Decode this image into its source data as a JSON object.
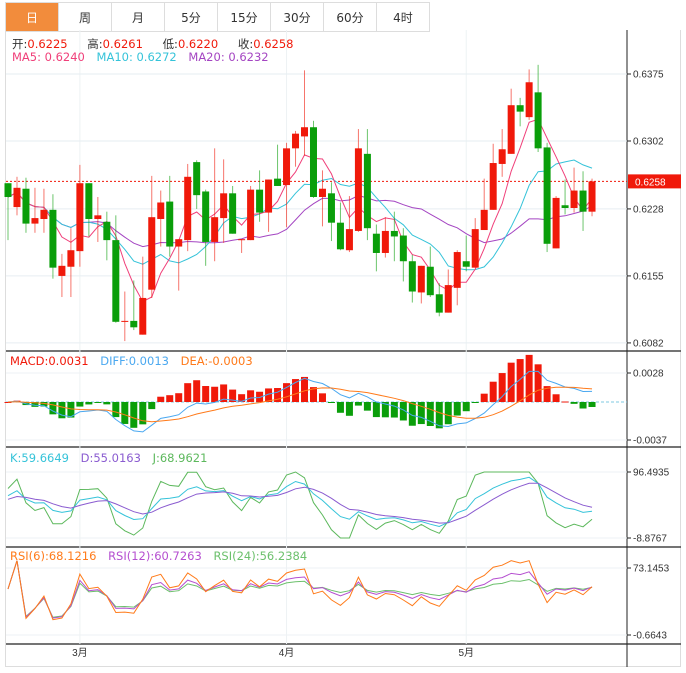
{
  "tabs": [
    {
      "label": "日",
      "active": true
    },
    {
      "label": "周"
    },
    {
      "label": "月"
    },
    {
      "label": "5分"
    },
    {
      "label": "15分"
    },
    {
      "label": "30分"
    },
    {
      "label": "60分"
    },
    {
      "label": "4时"
    }
  ],
  "legend": {
    "open_label": "开:",
    "open": "0.6225",
    "high_label": "高:",
    "high": "0.6261",
    "low_label": "低:",
    "low": "0.6220",
    "close_label": "收:",
    "close": "0.6258",
    "ma5": "MA5: 0.6240",
    "ma10": "MA10: 0.6272",
    "ma20": "MA20: 0.6232",
    "macd": "MACD:0.0031",
    "diff": "DIFF:0.0013",
    "dea": "DEA:-0.0003",
    "k": "K:59.6649",
    "d": "D:55.0163",
    "j": "J:68.9621",
    "rsi6": "RSI(6):68.1216",
    "rsi12": "RSI(12):60.7263",
    "rsi24": "RSI(24):56.2384"
  },
  "axes": {
    "price_ticks": [
      "0.6375",
      "0.6302",
      "0.6228",
      "0.6155",
      "0.6082"
    ],
    "price_tick_values": [
      0.6375,
      0.6302,
      0.6228,
      0.6155,
      0.6082
    ],
    "current_price": "0.6258",
    "macd_ticks": [
      "0.0028",
      "-0.0037"
    ],
    "kdj_ticks": [
      "96.4935",
      "-8.8767"
    ],
    "rsi_ticks": [
      "73.1453",
      "-0.6643"
    ],
    "months": [
      {
        "label": "3月",
        "index": 8
      },
      {
        "label": "4月",
        "index": 31
      },
      {
        "label": "5月",
        "index": 51
      }
    ]
  },
  "colors": {
    "up": "#f0190a",
    "down": "#0a9e0a",
    "ma5": "#f0407a",
    "ma10": "#35c3d9",
    "ma20": "#a445c2",
    "diff": "#4aa8f0",
    "dea": "#ff7a1a",
    "k": "#35c3d9",
    "d": "#8a5bd0",
    "j": "#5cb85c",
    "rsi6": "#ff7b1a",
    "rsi12": "#b54fd0",
    "rsi24": "#6cc06c",
    "tab_active": "#f28c3c"
  },
  "chart_data": {
    "type": "candlestick",
    "title": "",
    "ylim": [
      0.6082,
      0.6375
    ],
    "ohlc": [
      [
        0.6256,
        0.6256,
        0.6194,
        0.6241
      ],
      [
        0.623,
        0.6263,
        0.6221,
        0.6251
      ],
      [
        0.625,
        0.6262,
        0.6202,
        0.6212
      ],
      [
        0.6212,
        0.6251,
        0.6202,
        0.6218
      ],
      [
        0.6217,
        0.625,
        0.6202,
        0.6227
      ],
      [
        0.6227,
        0.6244,
        0.6152,
        0.6164
      ],
      [
        0.6155,
        0.6179,
        0.6132,
        0.6166
      ],
      [
        0.6165,
        0.6207,
        0.6132,
        0.6183
      ],
      [
        0.6182,
        0.6276,
        0.6165,
        0.6256
      ],
      [
        0.6256,
        0.6256,
        0.6198,
        0.6217
      ],
      [
        0.6217,
        0.6241,
        0.6192,
        0.6221
      ],
      [
        0.6214,
        0.6225,
        0.6172,
        0.6194
      ],
      [
        0.6194,
        0.6221,
        0.6104,
        0.6105
      ],
      [
        0.6105,
        0.6138,
        0.6084,
        0.6106
      ],
      [
        0.6106,
        0.615,
        0.6096,
        0.6099
      ],
      [
        0.6091,
        0.6176,
        0.6091,
        0.6131
      ],
      [
        0.614,
        0.6264,
        0.6131,
        0.6219
      ],
      [
        0.6217,
        0.6248,
        0.6187,
        0.6235
      ],
      [
        0.6236,
        0.6264,
        0.6176,
        0.6187
      ],
      [
        0.6187,
        0.6195,
        0.6139,
        0.6195
      ],
      [
        0.6194,
        0.6277,
        0.6182,
        0.6263
      ],
      [
        0.6279,
        0.6281,
        0.6228,
        0.6243
      ],
      [
        0.6247,
        0.6249,
        0.6166,
        0.6192
      ],
      [
        0.6192,
        0.6294,
        0.6171,
        0.6219
      ],
      [
        0.6218,
        0.6282,
        0.6191,
        0.6245
      ],
      [
        0.6245,
        0.6253,
        0.6201,
        0.6201
      ],
      [
        0.6194,
        0.6195,
        0.618,
        0.6195
      ],
      [
        0.6194,
        0.6253,
        0.6194,
        0.6249
      ],
      [
        0.6249,
        0.627,
        0.6214,
        0.6224
      ],
      [
        0.6224,
        0.626,
        0.6203,
        0.626
      ],
      [
        0.6261,
        0.6298,
        0.6253,
        0.6253
      ],
      [
        0.6254,
        0.63,
        0.6208,
        0.6294
      ],
      [
        0.6294,
        0.6313,
        0.6274,
        0.631
      ],
      [
        0.6307,
        0.6379,
        0.6286,
        0.6317
      ],
      [
        0.6317,
        0.6324,
        0.624,
        0.6241
      ],
      [
        0.6241,
        0.627,
        0.6209,
        0.625
      ],
      [
        0.6245,
        0.6257,
        0.6193,
        0.6213
      ],
      [
        0.6213,
        0.6235,
        0.6183,
        0.6184
      ],
      [
        0.6183,
        0.6242,
        0.6181,
        0.6206
      ],
      [
        0.6204,
        0.6315,
        0.6203,
        0.6294
      ],
      [
        0.6288,
        0.6315,
        0.6194,
        0.6207
      ],
      [
        0.6201,
        0.6211,
        0.616,
        0.618
      ],
      [
        0.618,
        0.6219,
        0.6175,
        0.6204
      ],
      [
        0.6204,
        0.6225,
        0.6171,
        0.6198
      ],
      [
        0.6199,
        0.6207,
        0.6149,
        0.6171
      ],
      [
        0.6171,
        0.6178,
        0.6126,
        0.6138
      ],
      [
        0.6137,
        0.6166,
        0.6125,
        0.6166
      ],
      [
        0.6165,
        0.6187,
        0.6132,
        0.6134
      ],
      [
        0.6135,
        0.6147,
        0.6111,
        0.6115
      ],
      [
        0.6115,
        0.6162,
        0.6115,
        0.6145
      ],
      [
        0.6142,
        0.6183,
        0.6123,
        0.6181
      ],
      [
        0.6171,
        0.6199,
        0.616,
        0.6165
      ],
      [
        0.6164,
        0.6218,
        0.6164,
        0.6206
      ],
      [
        0.6205,
        0.6261,
        0.6205,
        0.6227
      ],
      [
        0.6227,
        0.6299,
        0.6227,
        0.6278
      ],
      [
        0.6277,
        0.6315,
        0.6263,
        0.6293
      ],
      [
        0.6288,
        0.6359,
        0.6288,
        0.6341
      ],
      [
        0.6341,
        0.6349,
        0.6318,
        0.6334
      ],
      [
        0.6328,
        0.638,
        0.6325,
        0.6366
      ],
      [
        0.6355,
        0.6385,
        0.629,
        0.6294
      ],
      [
        0.6295,
        0.63,
        0.6181,
        0.619
      ],
      [
        0.6185,
        0.6242,
        0.6185,
        0.624
      ],
      [
        0.6232,
        0.626,
        0.6222,
        0.6229
      ],
      [
        0.6229,
        0.6273,
        0.6224,
        0.6248
      ],
      [
        0.6248,
        0.6269,
        0.6204,
        0.6225
      ],
      [
        0.6225,
        0.6261,
        0.622,
        0.6258
      ]
    ],
    "macd_range": [
      -0.0037,
      0.0028
    ],
    "kdj_range": [
      -8.8767,
      96.4935
    ],
    "rsi_range": [
      -0.6643,
      73.1453
    ]
  }
}
